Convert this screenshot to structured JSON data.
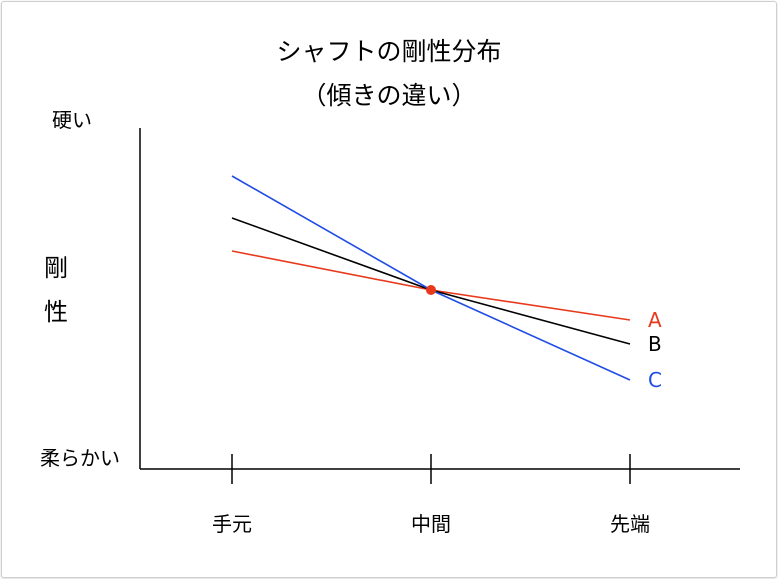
{
  "chart_data": {
    "type": "line",
    "title": "シャフトの剛性分布",
    "subtitle": "（傾きの違い）",
    "ylabel": "剛性",
    "y_top_label": "硬い",
    "y_bottom_label": "柔らかい",
    "categories": [
      "手元",
      "中間",
      "先端"
    ],
    "ylim": [
      0,
      100
    ],
    "grid": false,
    "series": [
      {
        "name": "A",
        "color": "#e8391c",
        "values": [
          63,
          50,
          40
        ]
      },
      {
        "name": "B",
        "color": "#000000",
        "values": [
          74,
          50,
          32
        ]
      },
      {
        "name": "C",
        "color": "#1f4de6",
        "values": [
          88,
          50,
          20
        ]
      }
    ],
    "marker": {
      "category": "中間",
      "value": 50,
      "color": "#e8391c"
    }
  }
}
